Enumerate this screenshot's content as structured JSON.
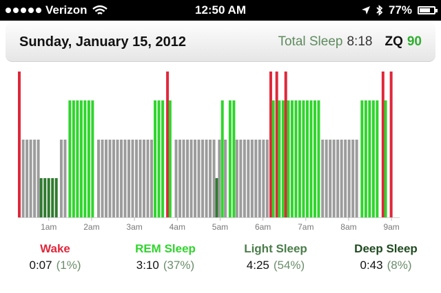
{
  "status_bar": {
    "carrier": "Verizon",
    "time": "12:50 AM",
    "battery": "77%",
    "battery_level": 0.77
  },
  "header": {
    "date": "Sunday, January 15, 2012",
    "total_sleep_label": "Total Sleep",
    "total_sleep_value": "8:18",
    "zq_label": "ZQ",
    "zq_value": "90"
  },
  "colors": {
    "wake": "#e0273a",
    "rem": "#2fd52c",
    "light": "#9c9c9c",
    "deep": "#2f7a2f"
  },
  "chart_data": {
    "type": "bar",
    "x_ticks": [
      "1am",
      "2am",
      "3am",
      "4am",
      "5am",
      "6am",
      "7am",
      "8am",
      "9am"
    ],
    "stages": [
      {
        "stage": "wake",
        "start": 0.28,
        "end": 0.37
      },
      {
        "stage": "light",
        "start": 0.37,
        "end": 0.79
      },
      {
        "stage": "deep",
        "start": 0.79,
        "end": 1.26
      },
      {
        "stage": "light",
        "start": 1.26,
        "end": 1.46
      },
      {
        "stage": "rem",
        "start": 1.46,
        "end": 2.13
      },
      {
        "stage": "light",
        "start": 2.13,
        "end": 3.45
      },
      {
        "stage": "rem",
        "start": 3.45,
        "end": 3.74
      },
      {
        "stage": "wake",
        "start": 3.74,
        "end": 3.8
      },
      {
        "stage": "rem",
        "start": 3.8,
        "end": 3.94
      },
      {
        "stage": "light",
        "start": 3.94,
        "end": 4.89
      },
      {
        "stage": "deep",
        "start": 4.89,
        "end": 4.95
      },
      {
        "stage": "light",
        "start": 4.95,
        "end": 5.02
      },
      {
        "stage": "rem",
        "start": 5.02,
        "end": 5.09
      },
      {
        "stage": "light",
        "start": 5.09,
        "end": 5.2
      },
      {
        "stage": "rem",
        "start": 5.2,
        "end": 5.36
      },
      {
        "stage": "light",
        "start": 5.36,
        "end": 6.15
      },
      {
        "stage": "wake",
        "start": 6.15,
        "end": 6.21
      },
      {
        "stage": "rem",
        "start": 6.21,
        "end": 6.29
      },
      {
        "stage": "wake",
        "start": 6.29,
        "end": 6.35
      },
      {
        "stage": "rem",
        "start": 6.35,
        "end": 6.5
      },
      {
        "stage": "wake",
        "start": 6.5,
        "end": 6.56
      },
      {
        "stage": "rem",
        "start": 6.56,
        "end": 7.36
      },
      {
        "stage": "light",
        "start": 7.36,
        "end": 8.28
      },
      {
        "stage": "rem",
        "start": 8.28,
        "end": 8.77
      },
      {
        "stage": "wake",
        "start": 8.77,
        "end": 8.83
      },
      {
        "stage": "rem",
        "start": 8.83,
        "end": 8.96
      },
      {
        "stage": "wake",
        "start": 8.96,
        "end": 9.03
      }
    ]
  },
  "legend": [
    {
      "label": "Wake",
      "duration": "0:07",
      "percent": "(1%)",
      "color": "#e0273a"
    },
    {
      "label": "REM Sleep",
      "duration": "3:10",
      "percent": "(37%)",
      "color": "#2fd52c"
    },
    {
      "label": "Light Sleep",
      "duration": "4:25",
      "percent": "(54%)",
      "color": "#4a7d4a"
    },
    {
      "label": "Deep Sleep",
      "duration": "0:43",
      "percent": "(8%)",
      "color": "#1f4a1f"
    }
  ]
}
